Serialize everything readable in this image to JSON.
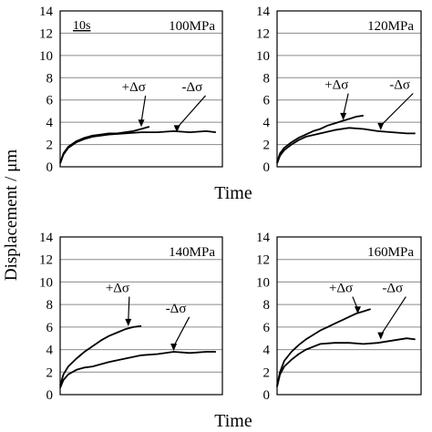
{
  "figure": {
    "ylabel": "Displacement / μm"
  },
  "chart_data": [
    {
      "type": "line",
      "title": "100MPa",
      "xlabel": "Time",
      "ylabel": "Displacement / μm",
      "ylim": [
        0,
        14
      ],
      "yticks": [
        0,
        2,
        4,
        6,
        8,
        10,
        12,
        14
      ],
      "grid": true,
      "time_scale_label": "10s",
      "annotations": [
        {
          "text": "+Δσ",
          "at": {
            "x": 0.5,
            "y": 3.5
          },
          "text_at": {
            "x": 0.38,
            "y": 6.8
          }
        },
        {
          "text": "-Δσ",
          "at": {
            "x": 0.72,
            "y": 3.0
          },
          "text_at": {
            "x": 0.75,
            "y": 6.8
          }
        }
      ],
      "series": [
        {
          "x": [
            0,
            0.02,
            0.05,
            0.1,
            0.15,
            0.2,
            0.25,
            0.3,
            0.35,
            0.4,
            0.45,
            0.5,
            0.55
          ],
          "y": [
            0.3,
            1.2,
            1.8,
            2.3,
            2.6,
            2.8,
            2.9,
            3.0,
            3.0,
            3.1,
            3.2,
            3.4,
            3.6
          ]
        },
        {
          "x": [
            0,
            0.02,
            0.05,
            0.1,
            0.15,
            0.2,
            0.3,
            0.4,
            0.5,
            0.6,
            0.7,
            0.8,
            0.9,
            0.96
          ],
          "y": [
            0.3,
            1.1,
            1.7,
            2.2,
            2.5,
            2.7,
            2.9,
            3.0,
            3.1,
            3.1,
            3.2,
            3.1,
            3.2,
            3.1
          ]
        }
      ]
    },
    {
      "type": "line",
      "title": "120MPa",
      "xlabel": "Time",
      "ylabel": "Displacement / μm",
      "ylim": [
        0,
        14
      ],
      "yticks": [
        0,
        2,
        4,
        6,
        8,
        10,
        12,
        14
      ],
      "grid": true,
      "annotations": [
        {
          "text": "+Δσ",
          "at": {
            "x": 0.46,
            "y": 4.1
          },
          "text_at": {
            "x": 0.33,
            "y": 7.0
          }
        },
        {
          "text": "-Δσ",
          "at": {
            "x": 0.72,
            "y": 3.2
          },
          "text_at": {
            "x": 0.78,
            "y": 7.0
          }
        }
      ],
      "series": [
        {
          "x": [
            0,
            0.02,
            0.05,
            0.1,
            0.15,
            0.2,
            0.25,
            0.3,
            0.35,
            0.4,
            0.45,
            0.5,
            0.55,
            0.6
          ],
          "y": [
            0.4,
            1.2,
            1.7,
            2.2,
            2.6,
            2.9,
            3.2,
            3.4,
            3.7,
            3.9,
            4.1,
            4.3,
            4.5,
            4.6
          ]
        },
        {
          "x": [
            0,
            0.02,
            0.05,
            0.1,
            0.15,
            0.2,
            0.3,
            0.4,
            0.5,
            0.6,
            0.7,
            0.8,
            0.9,
            0.96
          ],
          "y": [
            0.3,
            1.0,
            1.5,
            2.0,
            2.4,
            2.7,
            3.0,
            3.3,
            3.5,
            3.4,
            3.2,
            3.1,
            3.0,
            3.0
          ]
        }
      ]
    },
    {
      "type": "line",
      "title": "140MPa",
      "xlabel": "Time",
      "ylabel": "Displacement / μm",
      "ylim": [
        0,
        14
      ],
      "yticks": [
        0,
        2,
        4,
        6,
        8,
        10,
        12,
        14
      ],
      "grid": true,
      "annotations": [
        {
          "text": "+Δσ",
          "at": {
            "x": 0.42,
            "y": 6.0
          },
          "text_at": {
            "x": 0.28,
            "y": 9.1
          }
        },
        {
          "text": "-Δσ",
          "at": {
            "x": 0.7,
            "y": 3.8
          },
          "text_at": {
            "x": 0.65,
            "y": 7.3
          }
        }
      ],
      "series": [
        {
          "x": [
            0,
            0.02,
            0.05,
            0.1,
            0.15,
            0.2,
            0.25,
            0.3,
            0.35,
            0.4,
            0.45,
            0.5
          ],
          "y": [
            0.8,
            1.8,
            2.5,
            3.2,
            3.8,
            4.3,
            4.8,
            5.2,
            5.5,
            5.8,
            6.0,
            6.1
          ]
        },
        {
          "x": [
            0,
            0.02,
            0.05,
            0.1,
            0.15,
            0.2,
            0.3,
            0.4,
            0.5,
            0.6,
            0.7,
            0.8,
            0.9,
            0.96
          ],
          "y": [
            0.6,
            1.3,
            1.8,
            2.2,
            2.4,
            2.5,
            2.9,
            3.2,
            3.5,
            3.6,
            3.8,
            3.7,
            3.8,
            3.8
          ]
        }
      ]
    },
    {
      "type": "line",
      "title": "160MPa",
      "xlabel": "Time",
      "ylabel": "Displacement / μm",
      "ylim": [
        0,
        14
      ],
      "yticks": [
        0,
        2,
        4,
        6,
        8,
        10,
        12,
        14
      ],
      "grid": true,
      "annotations": [
        {
          "text": "+Δσ",
          "at": {
            "x": 0.56,
            "y": 7.1
          },
          "text_at": {
            "x": 0.36,
            "y": 9.1
          }
        },
        {
          "text": "-Δσ",
          "at": {
            "x": 0.72,
            "y": 4.8
          },
          "text_at": {
            "x": 0.73,
            "y": 9.1
          }
        }
      ],
      "series": [
        {
          "x": [
            0,
            0.02,
            0.05,
            0.1,
            0.15,
            0.2,
            0.25,
            0.3,
            0.35,
            0.4,
            0.45,
            0.5,
            0.55,
            0.6,
            0.65
          ],
          "y": [
            0.8,
            2.0,
            3.0,
            3.8,
            4.4,
            4.9,
            5.3,
            5.7,
            6.0,
            6.3,
            6.6,
            6.9,
            7.2,
            7.4,
            7.6
          ]
        },
        {
          "x": [
            0,
            0.02,
            0.05,
            0.1,
            0.15,
            0.2,
            0.3,
            0.4,
            0.5,
            0.6,
            0.7,
            0.8,
            0.9,
            0.96
          ],
          "y": [
            0.7,
            1.8,
            2.5,
            3.1,
            3.6,
            4.0,
            4.5,
            4.6,
            4.6,
            4.5,
            4.6,
            4.8,
            5.0,
            4.9
          ]
        }
      ]
    }
  ]
}
